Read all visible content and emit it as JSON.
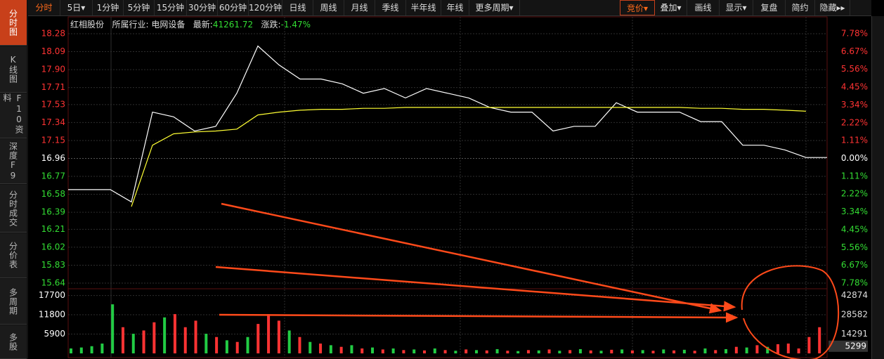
{
  "toolbar": {
    "left": [
      "分时",
      "5日▾",
      "1分钟",
      "5分钟",
      "15分钟",
      "30分钟",
      "60分钟",
      "120分钟",
      "日线",
      "周线",
      "月线",
      "季线",
      "半年线",
      "年线",
      "更多周期▾"
    ],
    "right": [
      "竞价▾",
      "叠加▾",
      "画线",
      "显示▾",
      "复盘",
      "简约",
      "隐藏▸▸"
    ]
  },
  "sidebar": [
    "分时图",
    "K线图",
    "F10资料",
    "深度F9",
    "分时成交",
    "分价表",
    "多周期",
    "多股"
  ],
  "info": {
    "name": "红相股份",
    "industry": "所属行业: 电网设备",
    "latest_label": "最新:",
    "latest": "41261.72",
    "change_label": "涨跌:",
    "change": "-1.47%"
  },
  "chart_data": [
    {
      "type": "line",
      "series": [
        {
          "color": "#ffffff",
          "values": [
            16.63,
            16.63,
            16.63,
            16.5,
            17.45,
            17.4,
            17.25,
            17.3,
            17.65,
            18.15,
            17.95,
            17.8,
            17.8,
            17.75,
            17.65,
            17.7,
            17.6,
            17.7,
            17.65,
            17.6,
            17.5,
            17.45,
            17.45,
            17.25,
            17.3,
            17.3,
            17.55,
            17.45,
            17.45,
            17.45,
            17.35,
            17.35,
            17.1,
            17.1,
            17.05,
            16.97,
            16.97
          ]
        },
        {
          "color": "#ffff33",
          "values": [
            null,
            null,
            null,
            16.45,
            17.1,
            17.22,
            17.24,
            17.25,
            17.27,
            17.42,
            17.45,
            17.47,
            17.48,
            17.48,
            17.49,
            17.49,
            17.5,
            17.5,
            17.5,
            17.5,
            17.5,
            17.5,
            17.5,
            17.5,
            17.5,
            17.5,
            17.5,
            17.5,
            17.5,
            17.5,
            17.49,
            17.49,
            17.48,
            17.48,
            17.47,
            17.46,
            null
          ]
        }
      ],
      "ylim": [
        15.64,
        18.28
      ],
      "yticks": [
        18.28,
        18.09,
        {
          "value": 17.9,
          "label": "17.90"
        },
        17.71,
        17.53,
        17.34,
        17.15,
        16.96,
        16.77,
        16.58,
        16.39,
        16.21,
        16.02,
        15.83,
        15.64
      ],
      "y2lim": [
        -7.78,
        7.78
      ],
      "y2ticks": [
        {
          "value": 7.78,
          "label": "7.78%"
        },
        {
          "value": 6.67,
          "label": "6.67%"
        },
        {
          "value": 5.56,
          "label": "5.56%"
        },
        {
          "value": 4.45,
          "label": "4.45%"
        },
        {
          "value": 3.34,
          "label": "3.34%"
        },
        {
          "value": 2.22,
          "label": "2.22%"
        },
        {
          "value": 1.11,
          "label": "1.11%"
        },
        {
          "value": 0,
          "label": "0.00%"
        },
        {
          "value": -1.11,
          "label": "1.11%"
        },
        {
          "value": -2.22,
          "label": "2.22%"
        },
        {
          "value": -3.34,
          "label": "3.34%"
        },
        {
          "value": -4.45,
          "label": "4.45%"
        },
        {
          "value": -5.56,
          "label": "5.56%"
        },
        {
          "value": -6.67,
          "label": "6.67%"
        },
        {
          "value": -7.78,
          "label": "7.78%"
        }
      ],
      "grid": true
    },
    {
      "type": "bar",
      "values": [
        1500,
        1800,
        2200,
        3000,
        15000,
        8000,
        6000,
        7000,
        9500,
        11000,
        12000,
        8000,
        10000,
        6000,
        5000,
        4000,
        3500,
        5000,
        9000,
        12000,
        10000,
        7000,
        5000,
        3500,
        3000,
        2500,
        2000,
        2500,
        1500,
        1800,
        1200,
        1500,
        1000,
        1200,
        900,
        1500,
        1000,
        800,
        1200,
        1000,
        900,
        1300,
        800,
        700,
        1000,
        900,
        1200,
        800,
        1000,
        1300,
        900,
        800,
        1100,
        1200,
        900,
        1000,
        800,
        1200,
        900,
        1100,
        800,
        1500,
        1000,
        1300,
        2000,
        1800,
        2500,
        2000,
        2800,
        3000,
        1500,
        5000,
        8000
      ],
      "colors": [
        "#22cc44",
        "#22cc44",
        "#22cc44",
        "#22cc44",
        "#22cc44",
        "#ff3333",
        "#22cc44",
        "#ff3333",
        "#ff3333",
        "#22cc44",
        "#ff3333",
        "#ff3333",
        "#ff3333",
        "#22cc44",
        "#ff3333",
        "#22cc44",
        "#ff3333",
        "#22cc44",
        "#ff3333",
        "#ff3333",
        "#ff3333",
        "#22cc44",
        "#ff3333",
        "#22cc44",
        "#ff3333",
        "#22cc44",
        "#ff3333",
        "#22cc44",
        "#ff3333",
        "#22cc44",
        "#ff3333",
        "#22cc44",
        "#ff3333",
        "#22cc44",
        "#ff3333",
        "#22cc44",
        "#ff3333",
        "#22cc44",
        "#ff3333",
        "#22cc44",
        "#ff3333",
        "#22cc44",
        "#ff3333",
        "#22cc44",
        "#ff3333",
        "#22cc44",
        "#ff3333",
        "#22cc44",
        "#ff3333",
        "#22cc44",
        "#ff3333",
        "#22cc44",
        "#ff3333",
        "#22cc44",
        "#ff3333",
        "#22cc44",
        "#ff3333",
        "#22cc44",
        "#ff3333",
        "#22cc44",
        "#ff3333",
        "#22cc44",
        "#ff3333",
        "#22cc44",
        "#ff3333",
        "#22cc44",
        "#ff3333",
        "#22cc44",
        "#ff3333",
        "#ff3333",
        "#ff3333",
        "#ff3333",
        "#ff3333"
      ],
      "ylim": [
        0,
        18900
      ],
      "yticks": [
        5900,
        11800,
        17700
      ],
      "y2lim": [
        0,
        45782
      ],
      "y2ticks": [
        14291,
        28582,
        42874
      ],
      "last_value": 5299
    }
  ]
}
